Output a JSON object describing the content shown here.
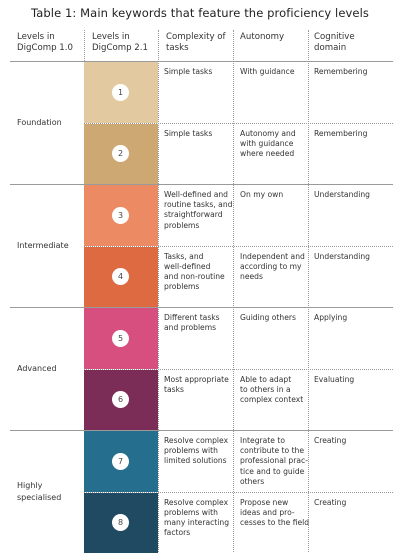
{
  "title": "Table 1: Main keywords that feature the proficiency levels",
  "headers": {
    "levels10": "Levels in\nDigComp 1.0",
    "levels21": "Levels in\nDigComp 2.1",
    "complexity": "Complexity of\ntasks",
    "autonomy": "Autonomy",
    "cognitive": "Cognitive\ndomain"
  },
  "groups": [
    "Foundation",
    "Intermediate",
    "Advanced",
    "Highly\nspecialised"
  ],
  "rows": [
    {
      "level": "1",
      "color": "#e2c9a0",
      "complexity": "Simple tasks",
      "autonomy": "With guidance",
      "cognitive": "Remembering"
    },
    {
      "level": "2",
      "color": "#cda873",
      "complexity": "Simple tasks",
      "autonomy": "Autonomy and\nwith guidance\nwhere needed",
      "cognitive": "Remembering"
    },
    {
      "level": "3",
      "color": "#ec8a64",
      "complexity": "Well-defined and\nroutine tasks, and\nstraightforward\nproblems",
      "autonomy": "On my own",
      "cognitive": "Understanding"
    },
    {
      "level": "4",
      "color": "#dd6a40",
      "complexity": "Tasks, and\nwell-defined\nand non-routine\nproblems",
      "autonomy": "Independent and\naccording to my\nneeds",
      "cognitive": "Understanding"
    },
    {
      "level": "5",
      "color": "#d64f7f",
      "complexity": "Different tasks\nand problems",
      "autonomy": "Guiding others",
      "cognitive": "Applying"
    },
    {
      "level": "6",
      "color": "#7b2d58",
      "complexity": "Most appropriate\ntasks",
      "autonomy": "Able to adapt\nto others in a\ncomplex context",
      "cognitive": "Evaluating"
    },
    {
      "level": "7",
      "color": "#256e8d",
      "complexity": "Resolve complex\nproblems with\nlimited solutions",
      "autonomy": "Integrate to\ncontribute to the\nprofessional prac-\ntice and to guide\nothers",
      "cognitive": "Creating"
    },
    {
      "level": "8",
      "color": "#1f4a62",
      "complexity": "Resolve complex\nproblems with\nmany interacting\nfactors",
      "autonomy": "Propose new\nideas and pro-\ncesses to the field",
      "cognitive": "Creating"
    }
  ]
}
